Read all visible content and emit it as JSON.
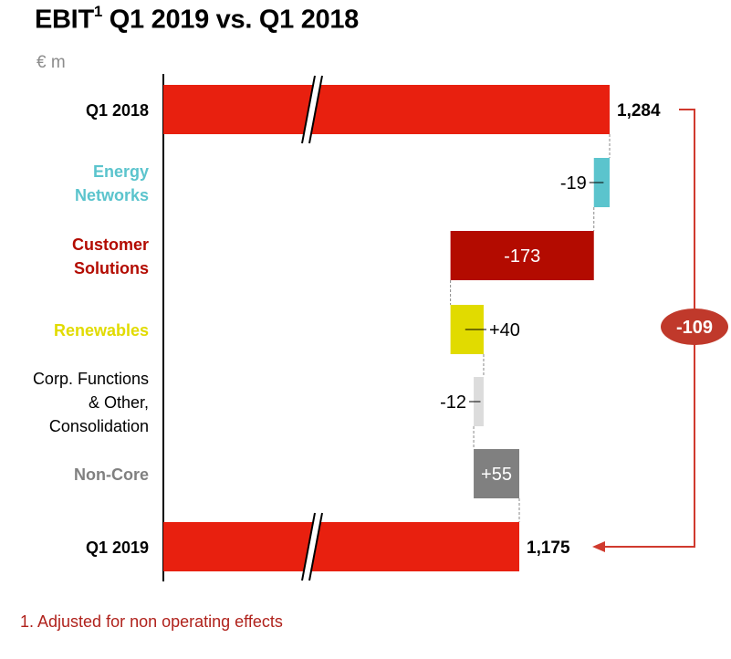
{
  "title": {
    "main": "EBIT",
    "sup": "1",
    "rest": " Q1 2019 vs. Q1 2018"
  },
  "unit": "€ m",
  "footnote": "1. Adjusted for non operating effects",
  "colors": {
    "total": "#e8200f",
    "energy_networks": "#5bc4cd",
    "customer_solutions": "#b30b00",
    "renewables": "#e1db00",
    "corp_functions": "#dcdcdc",
    "non_core": "#808080",
    "delta_badge": "#c0392b",
    "arrow": "#d03a2e"
  },
  "chart_data": {
    "type": "waterfall",
    "title": "EBIT1 Q1 2019 vs. Q1 2018",
    "unit": "€ m",
    "categories": [
      "Q1 2018",
      "Energy Networks",
      "Customer Solutions",
      "Renewables",
      "Corp. Functions & Other, Consolidation",
      "Non-Core",
      "Q1 2019"
    ],
    "items": [
      {
        "label_lines": [
          "Q1 2018"
        ],
        "kind": "total",
        "value": 1284,
        "value_label": "1,284",
        "label_color": "#000000",
        "fill": "#e8200f"
      },
      {
        "label_lines": [
          "Energy",
          "Networks"
        ],
        "kind": "delta",
        "value": -19,
        "value_label": "-19",
        "label_color": "#5bc4cd",
        "fill": "#5bc4cd"
      },
      {
        "label_lines": [
          "Customer",
          "Solutions"
        ],
        "kind": "delta",
        "value": -173,
        "value_label": "-173",
        "label_color": "#b30b00",
        "fill": "#b30b00"
      },
      {
        "label_lines": [
          "Renewables"
        ],
        "kind": "delta",
        "value": 40,
        "value_label": "+40",
        "label_color": "#e1db00",
        "fill": "#e1db00"
      },
      {
        "label_lines": [
          "Corp. Functions",
          "& Other,",
          "Consolidation"
        ],
        "kind": "delta",
        "value": -12,
        "value_label": "-12",
        "label_color": "#000000",
        "fill": "#dcdcdc"
      },
      {
        "label_lines": [
          "Non-Core"
        ],
        "kind": "delta",
        "value": 55,
        "value_label": "+55",
        "label_color": "#808080",
        "fill": "#808080"
      },
      {
        "label_lines": [
          "Q1 2019"
        ],
        "kind": "total",
        "value": 1175,
        "value_label": "1,175",
        "label_color": "#000000",
        "fill": "#e8200f"
      }
    ],
    "total_change": {
      "value": -109,
      "label": "-109"
    },
    "axis_break": true
  }
}
